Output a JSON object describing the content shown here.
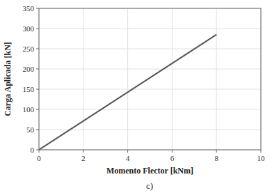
{
  "chart_data": {
    "type": "line",
    "x_label": "Momento Flector [kNm]",
    "y_label": "Carga Aplicada [kN]",
    "annotation": "c)",
    "x": [
      0,
      8.0
    ],
    "values": [
      0,
      285
    ],
    "color": "#555555",
    "xlim": [
      0,
      10
    ],
    "ylim": [
      0,
      350
    ],
    "xticks": [
      0,
      2,
      4,
      6,
      8,
      10
    ],
    "yticks": [
      0,
      50,
      100,
      150,
      200,
      250,
      300,
      350
    ],
    "grid": true
  }
}
